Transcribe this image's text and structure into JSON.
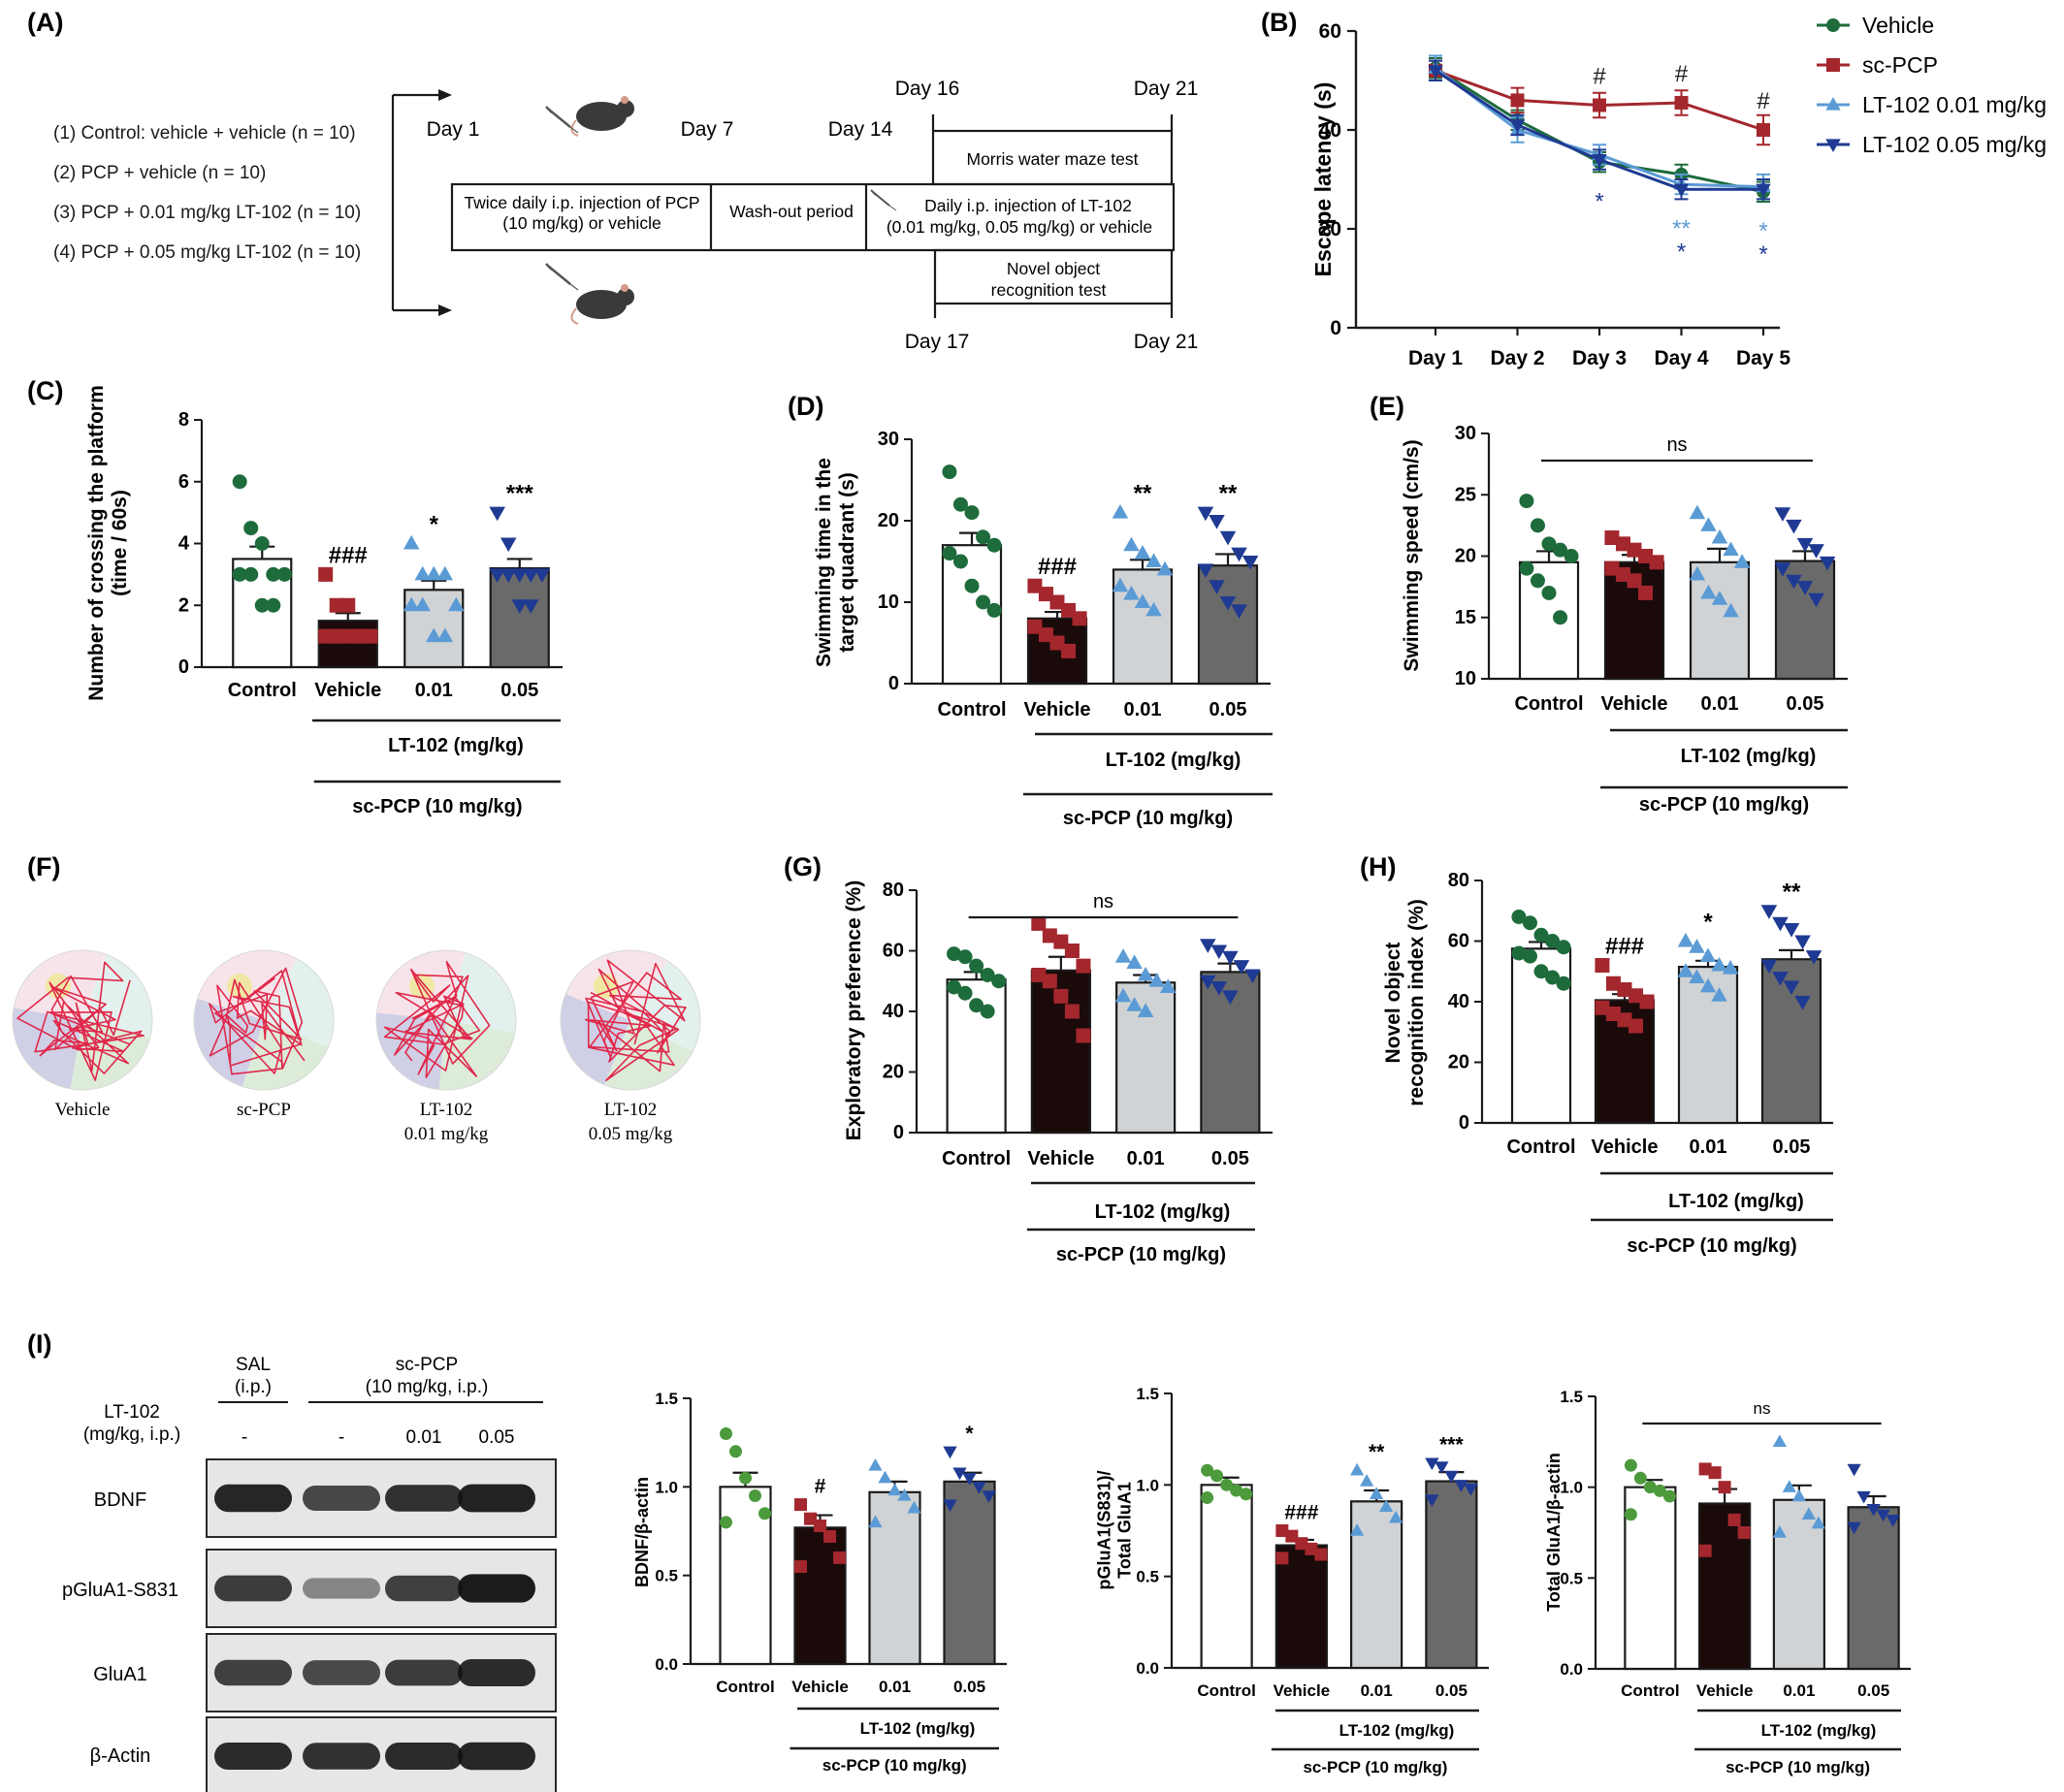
{
  "colors": {
    "control": "#1e6b3c",
    "pcp": "#a3272d",
    "lt01": "#5b9bd5",
    "lt05": "#1f3a93",
    "bar_control": "#ffffff",
    "bar_vehicle": "#1a0a0a",
    "bar_lt01": "#d0d3d5",
    "bar_lt05": "#6a6a6a",
    "green_light": "#4c9a3c"
  },
  "panel_A": {
    "letter": "(A)",
    "groups": [
      "(1) Control: vehicle + vehicle (n = 10)",
      "(2) PCP + vehicle (n = 10)",
      "(3) PCP + 0.01 mg/kg LT-102 (n = 10)",
      "(4) PCP + 0.05 mg/kg LT-102 (n = 10)"
    ],
    "day1": "Day 1",
    "day7": "Day 7",
    "day14": "Day 14",
    "day16": "Day 16",
    "day17": "Day 17",
    "day21_top": "Day 21",
    "day21_bottom": "Day 21",
    "box1_line1": "Twice daily i.p. injection of PCP",
    "box1_line2": "(10 mg/kg) or vehicle",
    "box2": "Wash-out period",
    "box3_line1": "Daily i.p. injection of LT-102",
    "box3_line2": "(0.01 mg/kg, 0.05 mg/kg) or vehicle",
    "mwm": "Morris water maze test",
    "nor_line1": "Novel object",
    "nor_line2": "recognition test"
  },
  "legend_B": [
    "Vehicle",
    "sc-PCP",
    "LT-102 0.01 mg/kg",
    "LT-102 0.05 mg/kg"
  ],
  "panel_F": {
    "letter": "(F)",
    "labels": [
      [
        "Vehicle",
        ""
      ],
      [
        "sc-PCP",
        ""
      ],
      [
        "LT-102",
        "0.01 mg/kg"
      ],
      [
        "LT-102",
        "0.05 mg/kg"
      ]
    ]
  },
  "western": {
    "letter": "(I)",
    "sal_line1": "SAL",
    "sal_line2": "(i.p.)",
    "pcp_line1": "sc-PCP",
    "pcp_line2": "(10 mg/kg, i.p.)",
    "lt_line1": "LT-102",
    "lt_line2": "(mg/kg, i.p.)",
    "doses": [
      "-",
      "-",
      "0.01",
      "0.05"
    ],
    "blots": [
      "BDNF",
      "pGluA1-S831",
      "GluA1",
      "β-Actin"
    ]
  },
  "chart_data": [
    {
      "id": "B",
      "letter": "(B)",
      "type": "line",
      "x": [
        "Day 1",
        "Day 2",
        "Day 3",
        "Day 4",
        "Day 5"
      ],
      "ylabel": "Escape latency (s)",
      "ylim": [
        0,
        60
      ],
      "yticks": [
        0,
        20,
        40,
        60
      ],
      "series": [
        {
          "name": "Vehicle",
          "values": [
            52.5,
            42,
            33.5,
            31,
            27.5
          ],
          "err": [
            2,
            2,
            2,
            2,
            2
          ]
        },
        {
          "name": "sc-PCP",
          "values": [
            52,
            46,
            45,
            45.5,
            40
          ],
          "err": [
            2,
            2.5,
            2.5,
            2.5,
            3
          ]
        },
        {
          "name": "LT-102 0.01 mg/kg",
          "values": [
            52.5,
            40,
            35,
            29,
            28.5
          ],
          "err": [
            2.5,
            2.5,
            2,
            2,
            2.5
          ]
        },
        {
          "name": "LT-102 0.05 mg/kg",
          "values": [
            52,
            41,
            34,
            28,
            28
          ],
          "err": [
            2,
            2,
            2,
            2,
            2
          ]
        }
      ],
      "annotations": [
        {
          "x": "Day 3",
          "text": "#",
          "pos": "above"
        },
        {
          "x": "Day 4",
          "text": "#",
          "pos": "above"
        },
        {
          "x": "Day 5",
          "text": "#",
          "pos": "above"
        },
        {
          "x": "Day 3",
          "text": "*",
          "pos": "below",
          "row": 1,
          "series": "LT-102 0.05 mg/kg"
        },
        {
          "x": "Day 4",
          "text": "**",
          "pos": "below",
          "row": 1,
          "series": "LT-102 0.01 mg/kg"
        },
        {
          "x": "Day 4",
          "text": "*",
          "pos": "below",
          "row": 2,
          "series": "LT-102 0.05 mg/kg"
        },
        {
          "x": "Day 5",
          "text": "*",
          "pos": "below",
          "row": 1,
          "series": "LT-102 0.01 mg/kg"
        },
        {
          "x": "Day 5",
          "text": "*",
          "pos": "below",
          "row": 2,
          "series": "LT-102 0.05 mg/kg"
        }
      ]
    },
    {
      "id": "C",
      "letter": "(C)",
      "type": "bar",
      "categories": [
        "Control",
        "Vehicle",
        "0.01",
        "0.05"
      ],
      "ylabel_lines": [
        "Number of crossing the platform",
        "(time / 60s)"
      ],
      "ylim": [
        0,
        8
      ],
      "yticks": [
        0,
        2,
        4,
        6,
        8
      ],
      "values": [
        3.5,
        1.5,
        2.5,
        3.2
      ],
      "err": [
        0.4,
        0.25,
        0.3,
        0.3
      ],
      "points": [
        [
          6,
          4.5,
          4,
          3,
          3,
          3,
          3,
          2,
          2
        ],
        [
          3,
          2,
          2,
          1,
          1,
          1,
          1,
          1,
          1
        ],
        [
          4,
          3,
          3,
          3,
          2,
          2,
          2,
          1,
          1
        ],
        [
          5,
          4,
          3,
          3,
          3,
          3,
          3,
          2,
          2
        ]
      ],
      "sig": [
        "",
        "###",
        "*",
        "***"
      ],
      "group_label_1": "LT-102 (mg/kg)",
      "group_label_2": "sc-PCP (10 mg/kg)"
    },
    {
      "id": "D",
      "letter": "(D)",
      "type": "bar",
      "categories": [
        "Control",
        "Vehicle",
        "0.01",
        "0.05"
      ],
      "ylabel_lines": [
        "Swimming time in the",
        "target quadrant (s)"
      ],
      "ylim": [
        0,
        30
      ],
      "yticks": [
        0,
        10,
        20,
        30
      ],
      "values": [
        17,
        8,
        14,
        14.5
      ],
      "err": [
        1.5,
        0.8,
        1.2,
        1.4
      ],
      "points": [
        [
          26,
          22,
          21,
          18,
          17,
          16,
          15,
          12,
          10,
          9
        ],
        [
          12,
          11,
          10,
          9,
          8,
          7,
          6,
          5,
          4
        ],
        [
          21,
          17,
          16,
          15,
          14,
          12,
          11,
          10,
          9
        ],
        [
          21,
          20,
          18,
          16,
          15,
          14,
          12,
          10,
          9
        ]
      ],
      "sig": [
        "",
        "###",
        "**",
        "**"
      ],
      "group_label_1": "LT-102 (mg/kg)",
      "group_label_2": "sc-PCP (10 mg/kg)"
    },
    {
      "id": "E",
      "letter": "(E)",
      "type": "bar",
      "categories": [
        "Control",
        "Vehicle",
        "0.01",
        "0.05"
      ],
      "ylabel_lines": [
        "Swimming speed (cm/s)"
      ],
      "ylim": [
        10,
        30
      ],
      "yticks": [
        10,
        15,
        20,
        25,
        30
      ],
      "values": [
        19.5,
        19.5,
        19.5,
        19.6
      ],
      "err": [
        0.9,
        0.6,
        1.1,
        0.8
      ],
      "points": [
        [
          24.5,
          22.5,
          21,
          20.5,
          20,
          19,
          18,
          17,
          15
        ],
        [
          21.5,
          21,
          20.5,
          20,
          19.5,
          19,
          18.5,
          18,
          17
        ],
        [
          23.5,
          22.5,
          21.5,
          20.5,
          19.5,
          18.5,
          17,
          16.5,
          15.5
        ],
        [
          23.5,
          22.5,
          21,
          20.5,
          19.5,
          19,
          18,
          17.5,
          16.5
        ]
      ],
      "sig_line": "ns",
      "group_label_1": "LT-102 (mg/kg)",
      "group_label_2": "sc-PCP (10 mg/kg)"
    },
    {
      "id": "G",
      "letter": "(G)",
      "type": "bar",
      "categories": [
        "Control",
        "Vehicle",
        "0.01",
        "0.05"
      ],
      "ylabel_lines": [
        "Exploratory preference (%)"
      ],
      "ylim": [
        0,
        80
      ],
      "yticks": [
        0,
        20,
        40,
        60,
        80
      ],
      "values": [
        50.5,
        53.5,
        49.5,
        53
      ],
      "err": [
        2.5,
        4.5,
        2.5,
        2.8
      ],
      "points": [
        [
          59,
          58,
          55,
          52,
          50,
          48,
          46,
          42,
          40
        ],
        [
          69,
          65,
          63,
          60,
          55,
          52,
          50,
          45,
          40,
          32
        ],
        [
          58,
          56,
          52,
          50,
          48,
          45,
          42,
          40
        ],
        [
          62,
          60,
          58,
          55,
          52,
          50,
          48,
          45
        ]
      ],
      "sig_line": "ns",
      "group_label_1": "LT-102 (mg/kg)",
      "group_label_2": "sc-PCP (10 mg/kg)"
    },
    {
      "id": "H",
      "letter": "(H)",
      "type": "bar",
      "categories": [
        "Control",
        "Vehicle",
        "0.01",
        "0.05"
      ],
      "ylabel_lines": [
        "Novel object",
        "recognition index (%)"
      ],
      "ylim": [
        0,
        80
      ],
      "yticks": [
        0,
        20,
        40,
        60,
        80
      ],
      "values": [
        57.5,
        40.5,
        51.5,
        54
      ],
      "err": [
        2.2,
        2,
        2,
        3
      ],
      "points": [
        [
          68,
          66,
          62,
          60,
          58,
          56,
          55,
          50,
          48,
          46
        ],
        [
          52,
          46,
          44,
          42,
          40,
          38,
          36,
          34,
          32
        ],
        [
          60,
          58,
          55,
          52,
          51,
          50,
          48,
          45,
          42
        ],
        [
          70,
          66,
          64,
          60,
          55,
          52,
          48,
          45,
          40
        ]
      ],
      "sig": [
        "",
        "###",
        "*",
        "**"
      ],
      "group_label_1": "LT-102 (mg/kg)",
      "group_label_2": "sc-PCP (10 mg/kg)"
    },
    {
      "id": "I1",
      "type": "bar",
      "categories": [
        "Control",
        "Vehicle",
        "0.01",
        "0.05"
      ],
      "ylabel_lines": [
        "BDNF/β-actin"
      ],
      "ylim": [
        0,
        1.5
      ],
      "yticks": [
        "0.0",
        "0.5",
        "1.0",
        "1.5"
      ],
      "values": [
        1.0,
        0.77,
        0.97,
        1.03
      ],
      "err": [
        0.08,
        0.07,
        0.06,
        0.05
      ],
      "points": [
        [
          1.3,
          1.2,
          1.05,
          0.95,
          0.85,
          0.8
        ],
        [
          0.9,
          0.82,
          0.78,
          0.72,
          0.6,
          0.55
        ],
        [
          1.12,
          1.05,
          0.98,
          0.95,
          0.88,
          0.8
        ],
        [
          1.2,
          1.08,
          1.05,
          1.0,
          0.95,
          0.9
        ]
      ],
      "sig": [
        "",
        "#",
        "",
        "*"
      ],
      "group_label_1": "LT-102 (mg/kg)",
      "group_label_2": "sc-PCP (10 mg/kg)"
    },
    {
      "id": "I2",
      "type": "bar",
      "categories": [
        "Control",
        "Vehicle",
        "0.01",
        "0.05"
      ],
      "ylabel_lines": [
        "pGluA1(S831)/",
        "Total GluA1"
      ],
      "ylim": [
        0,
        1.5
      ],
      "yticks": [
        "0.0",
        "0.5",
        "1.0",
        "1.5"
      ],
      "values": [
        1.0,
        0.67,
        0.91,
        1.02
      ],
      "err": [
        0.04,
        0.03,
        0.06,
        0.05
      ],
      "points": [
        [
          1.08,
          1.05,
          1.0,
          0.97,
          0.95,
          0.93
        ],
        [
          0.75,
          0.72,
          0.68,
          0.65,
          0.62,
          0.6
        ],
        [
          1.08,
          1.02,
          0.95,
          0.88,
          0.82,
          0.75
        ],
        [
          1.12,
          1.1,
          1.05,
          1.0,
          0.98,
          0.92
        ]
      ],
      "sig": [
        "",
        "###",
        "**",
        "***"
      ],
      "group_label_1": "LT-102 (mg/kg)",
      "group_label_2": "sc-PCP (10 mg/kg)"
    },
    {
      "id": "I3",
      "type": "bar",
      "categories": [
        "Control",
        "Vehicle",
        "0.01",
        "0.05"
      ],
      "ylabel_lines": [
        "Total GluA1/β-actin"
      ],
      "ylim": [
        0,
        1.5
      ],
      "yticks": [
        "0.0",
        "0.5",
        "1.0",
        "1.5"
      ],
      "values": [
        1.0,
        0.91,
        0.93,
        0.89
      ],
      "err": [
        0.04,
        0.08,
        0.08,
        0.06
      ],
      "points": [
        [
          1.12,
          1.05,
          1.0,
          0.98,
          0.95,
          0.85
        ],
        [
          1.1,
          1.08,
          1.0,
          0.82,
          0.75,
          0.65
        ],
        [
          1.25,
          1.0,
          0.95,
          0.85,
          0.8,
          0.75
        ],
        [
          1.1,
          0.95,
          0.88,
          0.85,
          0.82,
          0.78
        ]
      ],
      "sig_line": "ns",
      "group_label_1": "LT-102 (mg/kg)",
      "group_label_2": "sc-PCP (10 mg/kg)"
    }
  ]
}
